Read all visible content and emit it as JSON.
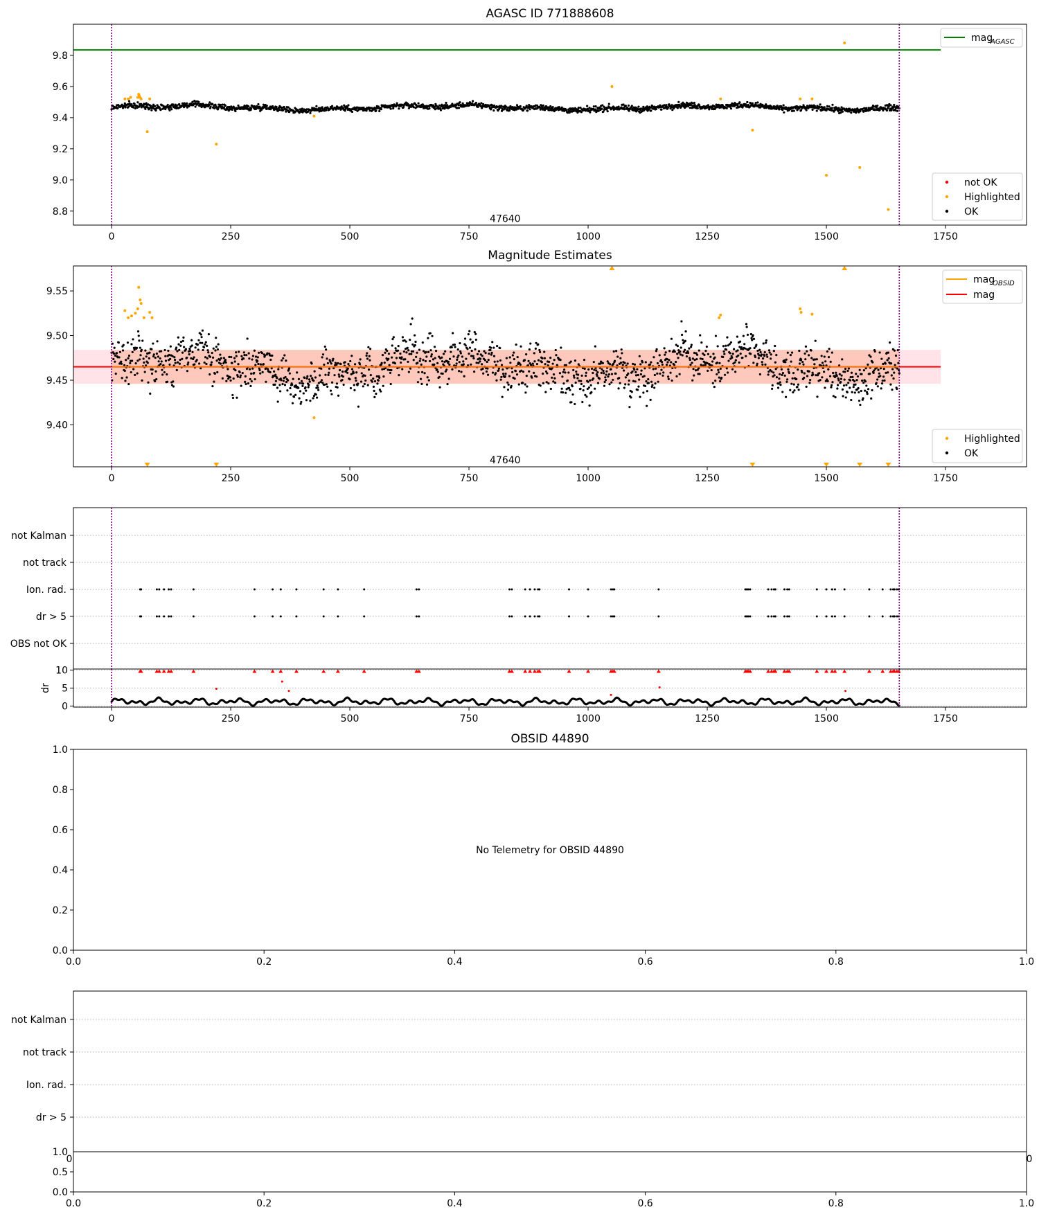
{
  "colors": {
    "ok": "#000000",
    "highlighted": "#ffa500",
    "not_ok": "#ff0000",
    "mag_agasc_line": "#008000",
    "mag_line": "#ff0000",
    "mag_obsid_line": "#ffa500",
    "obs_boundary": "#800080",
    "band_outer": "#ffc0cb",
    "band_inner": "#ffa07a",
    "grid": "#b0b0b0"
  },
  "chart_data": [
    {
      "id": "mag-agasc",
      "type": "scatter",
      "title": "AGASC ID 771888608",
      "xlim": [
        -80,
        1920
      ],
      "ylim": [
        8.71,
        10.0
      ],
      "xticks": [
        0,
        250,
        500,
        750,
        1000,
        1250,
        1500,
        1750
      ],
      "yticks": [
        8.8,
        9.0,
        9.2,
        9.4,
        9.6,
        9.8
      ],
      "ytick_labels": [
        "8.8",
        "9.0",
        "9.2",
        "9.4",
        "9.6",
        "9.8"
      ],
      "obs_boundaries": [
        0,
        1653
      ],
      "hline": {
        "name": "mag_AGASC",
        "y": 9.835,
        "x": [
          -80,
          1740
        ]
      },
      "annotation": {
        "text": "47640",
        "x": 826,
        "y": 8.73
      },
      "ok_series": {
        "name": "OK",
        "x_range": [
          0,
          1653
        ],
        "center": 9.465,
        "spread": 0.03
      },
      "highlighted": {
        "name": "Highlighted",
        "points": [
          [
            28,
            9.52
          ],
          [
            35,
            9.52
          ],
          [
            40,
            9.53
          ],
          [
            55,
            9.53
          ],
          [
            57,
            9.55
          ],
          [
            58,
            9.54
          ],
          [
            60,
            9.53
          ],
          [
            62,
            9.52
          ],
          [
            75,
            9.31
          ],
          [
            80,
            9.52
          ],
          [
            220,
            9.23
          ],
          [
            425,
            9.41
          ],
          [
            1050,
            9.6
          ],
          [
            1278,
            9.52
          ],
          [
            1345,
            9.32
          ],
          [
            1445,
            9.52
          ],
          [
            1470,
            9.52
          ],
          [
            1500,
            9.03
          ],
          [
            1538,
            9.88
          ],
          [
            1570,
            9.08
          ],
          [
            1630,
            8.81
          ]
        ]
      },
      "legend_top": [
        {
          "name": "mag_AGASC",
          "label": "mag",
          "sub": "AGASC",
          "kind": "line"
        }
      ],
      "legend_bottom": [
        {
          "name": "not OK",
          "kind": "dot"
        },
        {
          "name": "Highlighted",
          "kind": "dot"
        },
        {
          "name": "OK",
          "kind": "dot"
        }
      ]
    },
    {
      "id": "mag-estimates",
      "type": "scatter",
      "title": "Magnitude Estimates",
      "xlim": [
        -80,
        1920
      ],
      "ylim": [
        9.353,
        9.578
      ],
      "xticks": [
        0,
        250,
        500,
        750,
        1000,
        1250,
        1500,
        1750
      ],
      "yticks": [
        9.4,
        9.45,
        9.5,
        9.55
      ],
      "ytick_labels": [
        "9.40",
        "9.45",
        "9.50",
        "9.55"
      ],
      "obs_boundaries": [
        0,
        1653
      ],
      "mag_line": {
        "name": "mag",
        "y": 9.465,
        "x": [
          -80,
          1740
        ]
      },
      "mag_obsid_line": {
        "name": "mag_OBSID",
        "y": 9.465,
        "x": [
          0,
          1653
        ]
      },
      "band_outer": [
        9.446,
        9.484
      ],
      "band_inner": [
        9.446,
        9.484
      ],
      "annotation": {
        "text": "47640",
        "x": 826,
        "y": 9.357
      },
      "ok_series": {
        "name": "OK",
        "x_range": [
          0,
          1653
        ],
        "center": 9.465,
        "spread": 0.025
      },
      "highlighted": {
        "name": "Highlighted",
        "points": [
          [
            28,
            9.528
          ],
          [
            35,
            9.52
          ],
          [
            42,
            9.522
          ],
          [
            50,
            9.525
          ],
          [
            55,
            9.53
          ],
          [
            57,
            9.554
          ],
          [
            60,
            9.54
          ],
          [
            62,
            9.536
          ],
          [
            68,
            9.52
          ],
          [
            80,
            9.526
          ],
          [
            85,
            9.52
          ],
          [
            425,
            9.408
          ],
          [
            1275,
            9.52
          ],
          [
            1278,
            9.523
          ],
          [
            1445,
            9.53
          ],
          [
            1447,
            9.526
          ],
          [
            1470,
            9.524
          ]
        ]
      },
      "out_of_range_markers": {
        "top": [
          1050,
          1538
        ],
        "bottom": [
          75,
          220,
          1345,
          1500,
          1570,
          1630
        ]
      },
      "legend_top": [
        {
          "name": "mag_OBSID",
          "label": "mag",
          "sub": "OBSID",
          "kind": "line"
        },
        {
          "name": "mag",
          "label": "mag",
          "sub": "",
          "kind": "line"
        }
      ],
      "legend_bottom": [
        {
          "name": "Highlighted",
          "kind": "dot"
        },
        {
          "name": "OK",
          "kind": "dot"
        }
      ]
    },
    {
      "id": "flags",
      "type": "scatter",
      "xlim": [
        -80,
        1920
      ],
      "categories": [
        "not Kalman",
        "not track",
        "Ion. rad.",
        "dr > 5",
        "OBS not OK"
      ],
      "obs_boundaries": [
        0,
        1653
      ],
      "flag_times": [
        60,
        62,
        95,
        100,
        110,
        120,
        125,
        172,
        300,
        338,
        355,
        388,
        445,
        475,
        530,
        640,
        645,
        835,
        840,
        868,
        878,
        888,
        895,
        898,
        960,
        1000,
        1048,
        1052,
        1055,
        1148,
        1330,
        1333,
        1336,
        1340,
        1378,
        1385,
        1390,
        1393,
        1412,
        1418,
        1422,
        1480,
        1500,
        1512,
        1518,
        1538,
        1590,
        1618,
        1635,
        1640,
        1643,
        1648,
        1652
      ],
      "flag_rows": [
        "Ion. rad.",
        "dr > 5"
      ]
    },
    {
      "id": "dr",
      "type": "scatter",
      "xlim": [
        -80,
        1920
      ],
      "ylim": [
        -0.3,
        10.3
      ],
      "xticks": [
        0,
        250,
        500,
        750,
        1000,
        1250,
        1500,
        1750
      ],
      "yticks": [
        0,
        5,
        10
      ],
      "ytick_labels": [
        "0",
        "5",
        "10"
      ],
      "ylabel": "dr",
      "obs_boundaries": [
        0,
        1653
      ],
      "clipped_at": 10,
      "outliers": [
        [
          220,
          4.8
        ],
        [
          358,
          6.8
        ],
        [
          372,
          4.2
        ],
        [
          1048,
          3.1
        ],
        [
          1150,
          5.2
        ],
        [
          1540,
          4.2
        ]
      ]
    },
    {
      "id": "obsid-empty",
      "type": "scatter",
      "title": "OBSID 44890",
      "message": "No Telemetry for OBSID 44890",
      "xlim": [
        0,
        1
      ],
      "ylim": [
        0,
        1
      ],
      "xticks": [
        0,
        0.2,
        0.4,
        0.6,
        0.8,
        1.0
      ],
      "xtick_labels": [
        "0.0",
        "0.2",
        "0.4",
        "0.6",
        "0.8",
        "1.0"
      ],
      "yticks": [
        0,
        0.2,
        0.4,
        0.6,
        0.8,
        1.0
      ],
      "ytick_labels": [
        "0.0",
        "0.2",
        "0.4",
        "0.6",
        "0.8",
        "1.0"
      ]
    },
    {
      "id": "obsid-flags-empty",
      "type": "scatter",
      "categories": [
        "not Kalman",
        "not track",
        "Ion. rad.",
        "dr > 5"
      ],
      "partial_xtick_labels": [
        "0",
        "0"
      ],
      "ytick_top_label": "1.0"
    },
    {
      "id": "obsid-dr-empty",
      "type": "scatter",
      "xlim": [
        0,
        1
      ],
      "ylim": [
        0,
        1
      ],
      "xticks": [
        0,
        0.2,
        0.4,
        0.6,
        0.8,
        1.0
      ],
      "xtick_labels": [
        "0.0",
        "0.2",
        "0.4",
        "0.6",
        "0.8",
        "1.0"
      ],
      "yticks": [
        0,
        0.5,
        1.0
      ],
      "ytick_labels": [
        "0.0",
        "0.5",
        "1.0"
      ]
    }
  ]
}
